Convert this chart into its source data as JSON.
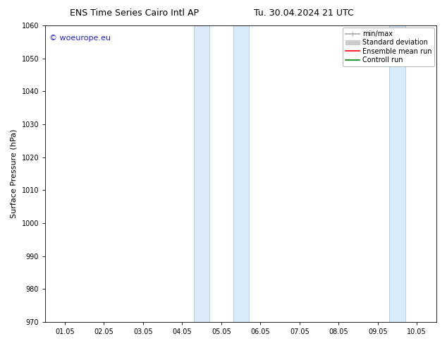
{
  "title_left": "ENS Time Series Cairo Intl AP",
  "title_right": "Tu. 30.04.2024 21 UTC",
  "ylabel": "Surface Pressure (hPa)",
  "ylim": [
    970,
    1060
  ],
  "yticks": [
    970,
    980,
    990,
    1000,
    1010,
    1020,
    1030,
    1040,
    1050,
    1060
  ],
  "xtick_labels": [
    "01.05",
    "02.05",
    "03.05",
    "04.05",
    "05.05",
    "06.05",
    "07.05",
    "08.05",
    "09.05",
    "10.05"
  ],
  "shade_bands": [
    {
      "xmin": 3.3,
      "xmax": 3.7
    },
    {
      "xmin": 4.3,
      "xmax": 4.7
    },
    {
      "xmin": 8.3,
      "xmax": 8.7
    }
  ],
  "shade_color": "#daeaf8",
  "shade_edge_color": "#aaccee",
  "background_color": "#ffffff",
  "watermark_text": "© woeurope.eu",
  "watermark_color": "#2222cc",
  "legend_items": [
    {
      "label": "min/max",
      "color": "#aaaaaa",
      "lw": 1.2
    },
    {
      "label": "Standard deviation",
      "color": "#cccccc",
      "lw": 5
    },
    {
      "label": "Ensemble mean run",
      "color": "#ff0000",
      "lw": 1.2
    },
    {
      "label": "Controll run",
      "color": "#008800",
      "lw": 1.2
    }
  ],
  "title_fontsize": 9,
  "tick_fontsize": 7,
  "ylabel_fontsize": 8,
  "legend_fontsize": 7,
  "watermark_fontsize": 8
}
